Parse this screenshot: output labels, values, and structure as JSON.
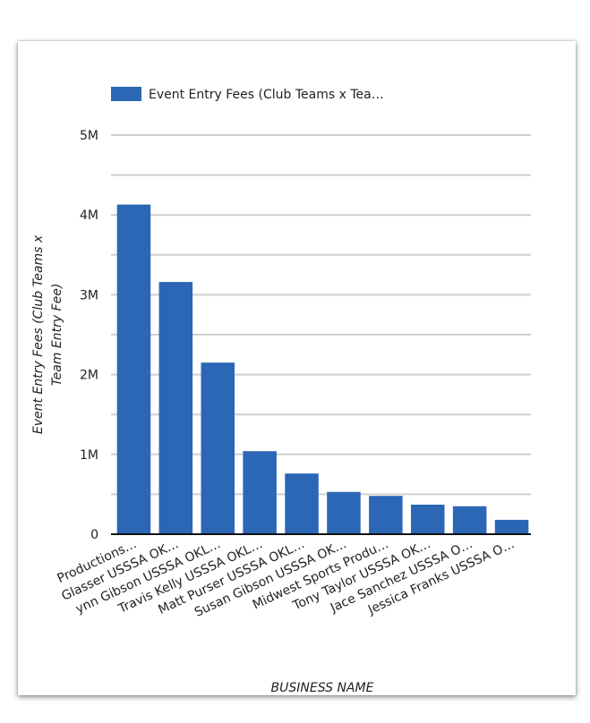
{
  "chart_data": {
    "type": "bar",
    "legend": [
      "Event Entry Fees (Club Teams x Tea…"
    ],
    "legend_position": "top",
    "xlabel": "Business Name",
    "ylabel": "Event Entry Fees (Club Teams x Team Entry Fee)",
    "yticks": [
      "0",
      "1M",
      "2M",
      "3M",
      "4M",
      "5M"
    ],
    "ylim": [
      0,
      5000000
    ],
    "grid": true,
    "color": "#2b67b5",
    "categories": [
      "Productions…",
      "Glasser USSSA OK…",
      "ynn Gibson USSSA OKL…",
      "Travis Kelly USSSA OKL…",
      "Matt Purser USSSA OKL…",
      "Susan Gibson USSSA OK…",
      "Midwest Sports Produ…",
      "Tony Taylor USSSA OK…",
      "Jace Sanchez USSSA O…",
      "Jessica Franks USSSA O…"
    ],
    "values": [
      4130000,
      3160000,
      2150000,
      1040000,
      760000,
      530000,
      480000,
      370000,
      350000,
      180000
    ]
  }
}
